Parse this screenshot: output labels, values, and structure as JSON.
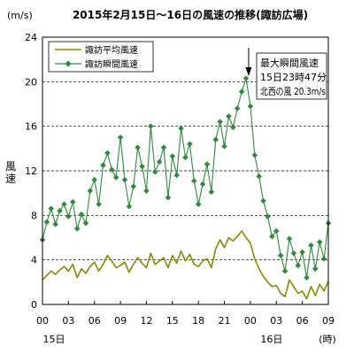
{
  "chart_data": {
    "type": "line",
    "title": "2015年2月15日〜16日の風速の推移(諏訪広場)",
    "unit_label": "(m/s)",
    "ylabel": "風速",
    "ylim": [
      0,
      24
    ],
    "yticks": [
      0,
      4,
      8,
      12,
      16,
      20,
      24
    ],
    "x_range_hours": [
      0,
      33
    ],
    "x_tick_hours": [
      0,
      3,
      6,
      9,
      12,
      15,
      18,
      21,
      24,
      27,
      30,
      33
    ],
    "x_tick_labels": [
      "00",
      "03",
      "06",
      "09",
      "12",
      "15",
      "18",
      "21",
      "00",
      "03",
      "06",
      "09"
    ],
    "x_day_labels": [
      {
        "hour": 0,
        "text": "15日"
      },
      {
        "hour": 24,
        "text": "16日"
      }
    ],
    "x_unit_label": "(時)",
    "grid": true,
    "legend_position": "top-left",
    "annotation": {
      "lines": [
        "最大瞬間風速",
        "15日23時47分",
        "北西の風 20.3m/s"
      ],
      "arrow_at_hour": 23.8
    },
    "series": [
      {
        "name": "諏訪平均風速",
        "color": "#8a8a00",
        "marker": false,
        "x": [
          0,
          0.5,
          1,
          1.5,
          2,
          2.5,
          3,
          3.5,
          4,
          4.5,
          5,
          5.5,
          6,
          6.5,
          7,
          7.5,
          8,
          8.5,
          9,
          9.5,
          10,
          10.5,
          11,
          11.5,
          12,
          12.5,
          13,
          13.5,
          14,
          14.5,
          15,
          15.5,
          16,
          16.5,
          17,
          17.5,
          18,
          18.5,
          19,
          19.5,
          20,
          20.5,
          21,
          21.5,
          22,
          22.5,
          23,
          23.5,
          24,
          24.5,
          25,
          25.5,
          26,
          26.5,
          27,
          27.5,
          28,
          28.5,
          29,
          29.5,
          30,
          30.5,
          31,
          31.5,
          32,
          32.5,
          33
        ],
        "values": [
          2.2,
          2.6,
          3.0,
          2.7,
          3.1,
          3.4,
          3.0,
          3.6,
          2.4,
          3.2,
          2.8,
          3.4,
          3.8,
          3.0,
          3.6,
          4.4,
          3.9,
          3.3,
          3.5,
          3.8,
          2.9,
          3.6,
          4.2,
          3.7,
          3.3,
          4.6,
          3.6,
          3.9,
          4.2,
          3.3,
          4.4,
          3.7,
          4.8,
          3.9,
          4.5,
          3.6,
          3.4,
          3.9,
          4.1,
          3.3,
          5.0,
          5.8,
          5.1,
          6.0,
          5.7,
          6.1,
          6.6,
          6.0,
          5.5,
          4.1,
          3.2,
          2.5,
          2.0,
          1.6,
          1.7,
          1.0,
          0.7,
          2.2,
          1.6,
          1.0,
          1.2,
          0.5,
          1.6,
          0.8,
          1.8,
          1.2,
          2.1
        ]
      },
      {
        "name": "諏訪瞬間風速",
        "color": "#2e8b3a",
        "marker": true,
        "x": [
          0,
          0.5,
          1,
          1.5,
          2,
          2.5,
          3,
          3.5,
          4,
          4.5,
          5,
          5.5,
          6,
          6.5,
          7,
          7.5,
          8,
          8.5,
          9,
          9.5,
          10,
          10.5,
          11,
          11.5,
          12,
          12.5,
          13,
          13.5,
          14,
          14.5,
          15,
          15.5,
          16,
          16.5,
          17,
          17.5,
          18,
          18.5,
          19,
          19.5,
          20,
          20.5,
          21,
          21.5,
          22,
          22.5,
          23,
          23.5,
          24,
          24.5,
          25,
          25.5,
          26,
          26.5,
          27,
          27.5,
          28,
          28.5,
          29,
          29.5,
          30,
          30.5,
          31,
          31.5,
          32,
          32.5,
          33
        ],
        "values": [
          5.8,
          7.4,
          8.6,
          7.2,
          8.4,
          9.0,
          7.9,
          9.2,
          6.8,
          8.1,
          7.3,
          10.2,
          11.2,
          9.0,
          12.5,
          13.6,
          12.1,
          11.4,
          15.0,
          11.2,
          8.8,
          10.6,
          14.1,
          12.4,
          10.2,
          16.0,
          11.9,
          12.8,
          14.1,
          9.6,
          13.3,
          11.6,
          15.8,
          13.2,
          14.4,
          11.1,
          9.0,
          10.8,
          12.6,
          10.1,
          14.8,
          16.4,
          14.2,
          16.9,
          15.9,
          17.6,
          19.1,
          20.3,
          17.8,
          13.4,
          11.5,
          9.3,
          7.9,
          6.1,
          6.6,
          4.4,
          3.0,
          5.9,
          4.6,
          3.5,
          4.7,
          2.4,
          5.3,
          3.2,
          5.6,
          4.1,
          7.3
        ]
      }
    ]
  }
}
